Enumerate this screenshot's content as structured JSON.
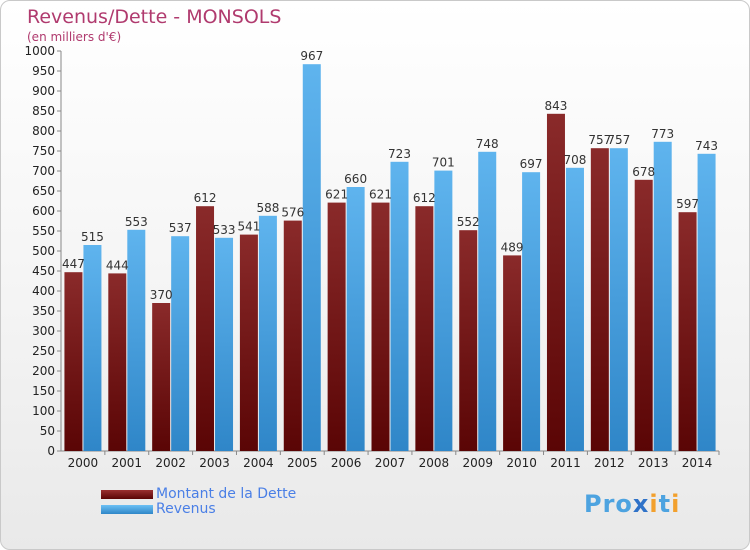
{
  "header": {
    "title": "Revenus/Dette - MONSOLS",
    "subtitle": "(en milliers d'€)"
  },
  "legend": {
    "items": [
      {
        "label": "Montant de la Dette",
        "color": "#7a1010"
      },
      {
        "label": "Revenus",
        "color": "#3f9fe0"
      }
    ]
  },
  "logo": {
    "text": "Proxiti"
  },
  "colors": {
    "debt": "#7a1010",
    "revenue": "#3f9fe0",
    "title": "#b03a6e",
    "legend_text": "#4a7fe6"
  },
  "chart_data": {
    "type": "bar",
    "title": "Revenus/Dette - MONSOLS",
    "subtitle": "(en milliers d'€)",
    "categories": [
      "2000",
      "2001",
      "2002",
      "2003",
      "2004",
      "2005",
      "2006",
      "2007",
      "2008",
      "2009",
      "2010",
      "2011",
      "2012",
      "2013",
      "2014"
    ],
    "series": [
      {
        "name": "Montant de la Dette",
        "values": [
          447,
          444,
          370,
          612,
          541,
          576,
          621,
          621,
          612,
          552,
          489,
          843,
          757,
          678,
          597
        ]
      },
      {
        "name": "Revenus",
        "values": [
          515,
          553,
          537,
          533,
          588,
          967,
          660,
          723,
          701,
          748,
          697,
          708,
          757,
          773,
          743
        ]
      }
    ],
    "ylim": [
      0,
      1000
    ],
    "yticks": [
      0,
      50,
      100,
      150,
      200,
      250,
      300,
      350,
      400,
      450,
      500,
      550,
      600,
      650,
      700,
      750,
      800,
      850,
      900,
      950,
      1000
    ],
    "grid": false,
    "legend_position": "bottom-left"
  }
}
